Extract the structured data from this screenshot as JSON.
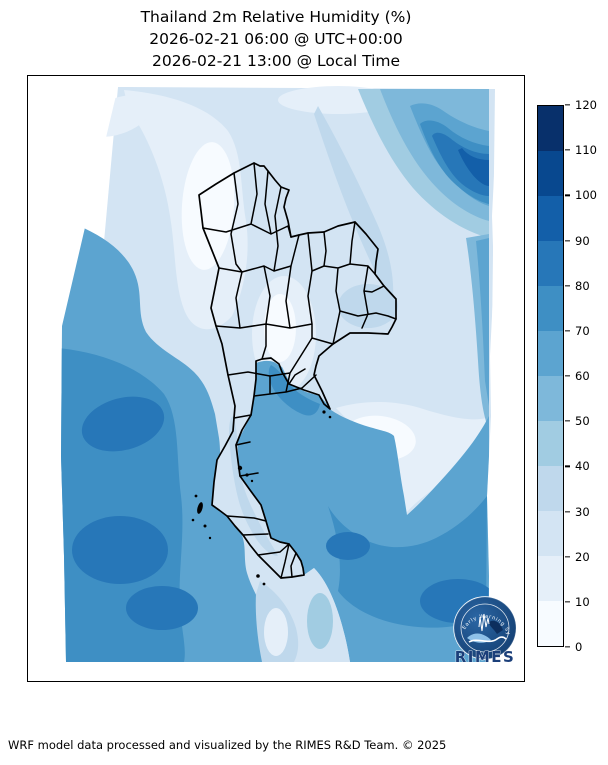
{
  "figure": {
    "title_line1": "Thailand 2m Relative Humidity (%)",
    "title_line2": "2026-02-21 06:00 @ UTC+00:00",
    "title_line3": "2026-02-21 13:00 @ Local Time",
    "footer_credit": "WRF model data processed and visualized by the RIMES R&D Team. © 2025"
  },
  "colorbar": {
    "min": 0,
    "max": 120,
    "tick_step": 10,
    "ticks": [
      0,
      10,
      20,
      30,
      40,
      50,
      60,
      70,
      80,
      90,
      100,
      110,
      120
    ],
    "colors": [
      "#f7fbff",
      "#e5eff9",
      "#d3e4f3",
      "#bfd8ec",
      "#a1cce2",
      "#7eb8da",
      "#5ca4d0",
      "#3e8fc4",
      "#2777b8",
      "#135fa9",
      "#08488f",
      "#08306b"
    ]
  },
  "logo": {
    "text": "RIMES",
    "arc_text": "Early Warning System",
    "navy": "#16477e",
    "deep_navy": "#0d2f5e",
    "mid_blue": "#2e6cab",
    "light_blue": "#8ec1e8",
    "wordmark_color": "#1b3f7a"
  },
  "chart_data": {
    "type": "heatmap",
    "title": "Thailand 2m Relative Humidity (%)",
    "timestamp_utc": "2026-02-21 06:00 @ UTC+00:00",
    "timestamp_local": "2026-02-21 13:00 @ Local Time",
    "variable": "2m relative humidity",
    "units": "%",
    "colormap": "Blues, 12 discrete levels",
    "colorbar_range": [
      0,
      120
    ],
    "colorbar_ticks": [
      0,
      10,
      20,
      30,
      40,
      50,
      60,
      70,
      80,
      90,
      100,
      110,
      120
    ],
    "legend_position": "right",
    "grid": false,
    "map_overlay": "Thailand province boundaries drawn in black; surrounding countries unoutlined",
    "regions_estimated_values": [
      {
        "region": "Central Thailand plain",
        "rh_percent": "10-30"
      },
      {
        "region": "Northern Thailand highlands",
        "rh_percent": "20-40"
      },
      {
        "region": "Northeast Thailand (Isan)",
        "rh_percent": "20-40"
      },
      {
        "region": "Myanmar central valley (northwest)",
        "rh_percent": "10-30"
      },
      {
        "region": "Bay of Bengal coastal strip (west edge)",
        "rh_percent": "60-80"
      },
      {
        "region": "Andaman Sea (southwest)",
        "rh_percent": "60-90"
      },
      {
        "region": "Gulf of Thailand",
        "rh_percent": "60-90"
      },
      {
        "region": "Cambodia / Mekong delta lowlands (southeast)",
        "rh_percent": "10-30"
      },
      {
        "region": "Gulf of Tonkin / Vietnam coast (northeast)",
        "rh_percent": "80-100"
      },
      {
        "region": "Southern peninsula and Malaysia land strip",
        "rh_percent": "10-40"
      }
    ]
  }
}
